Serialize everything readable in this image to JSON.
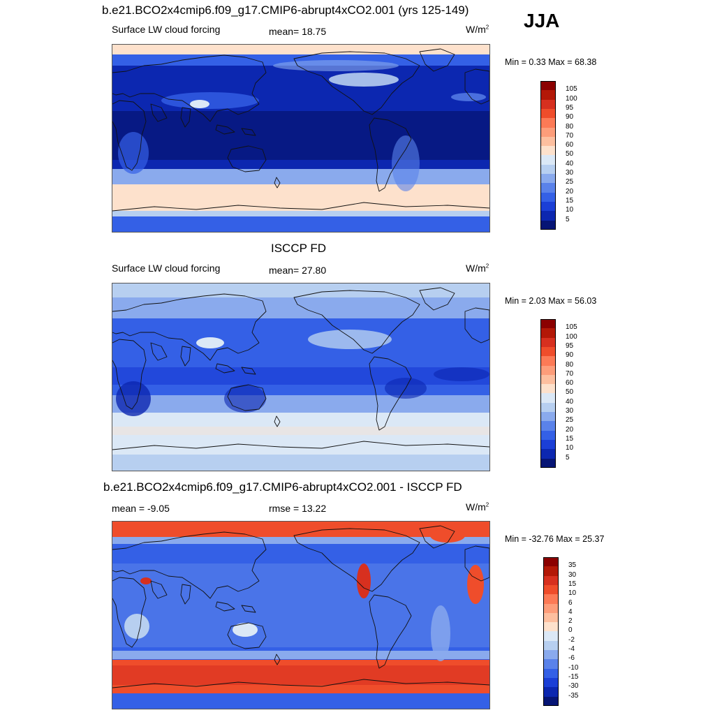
{
  "season": "JJA",
  "panels": [
    {
      "title": "b.e21.BCO2x4cmip6.f09_g17.CMIP6-abrupt4xCO2.001 (yrs 125-149)",
      "left_label": "Surface LW cloud forcing",
      "center_label": "mean=  18.75",
      "units_base": "W/m",
      "units_exp": "2",
      "minmax": "Min =   0.33 Max =  68.38",
      "colorbar": {
        "labels": [
          "105",
          "100",
          "95",
          "90",
          "80",
          "70",
          "60",
          "50",
          "40",
          "30",
          "25",
          "20",
          "15",
          "10",
          "5"
        ],
        "colors": [
          "#8b0000",
          "#b31807",
          "#d7301f",
          "#ef4d2b",
          "#fc7a56",
          "#fd9d7a",
          "#fdbf9f",
          "#fde1cc",
          "#dbe8f6",
          "#b7cff0",
          "#8aaaed",
          "#5a82ea",
          "#3460e6",
          "#1b3fd6",
          "#0c27b0",
          "#061575"
        ]
      },
      "field": "lwcf_model"
    },
    {
      "title": "ISCCP FD",
      "left_label": "Surface LW cloud forcing",
      "center_label": "mean=  27.80",
      "units_base": "W/m",
      "units_exp": "2",
      "minmax": "Min =   2.03 Max =  56.03",
      "colorbar": {
        "labels": [
          "105",
          "100",
          "95",
          "90",
          "80",
          "70",
          "60",
          "50",
          "40",
          "30",
          "25",
          "20",
          "15",
          "10",
          "5"
        ],
        "colors": [
          "#8b0000",
          "#b31807",
          "#d7301f",
          "#ef4d2b",
          "#fc7a56",
          "#fd9d7a",
          "#fdbf9f",
          "#fde1cc",
          "#dbe8f6",
          "#b7cff0",
          "#8aaaed",
          "#5a82ea",
          "#3460e6",
          "#1b3fd6",
          "#0c27b0",
          "#061575"
        ]
      },
      "field": "lwcf_obs"
    },
    {
      "title": "b.e21.BCO2x4cmip6.f09_g17.CMIP6-abrupt4xCO2.001 - ISCCP FD",
      "left_label": "mean =  -9.05",
      "center_label": "rmse =  13.22",
      "units_base": "W/m",
      "units_exp": "2",
      "minmax": "Min = -32.76 Max =  25.37",
      "colorbar": {
        "labels": [
          "35",
          "30",
          "15",
          "10",
          "6",
          "4",
          "2",
          "0",
          "-2",
          "-4",
          "-6",
          "-10",
          "-15",
          "-30",
          "-35"
        ],
        "colors": [
          "#8b0000",
          "#b31807",
          "#d7301f",
          "#ef4d2b",
          "#fc7a56",
          "#fd9d7a",
          "#fdbf9f",
          "#fde1cc",
          "#dbe8f6",
          "#b7cff0",
          "#8aaaed",
          "#5a82ea",
          "#3460e6",
          "#1b3fd6",
          "#0c27b0",
          "#061575"
        ]
      },
      "field": "lwcf_diff"
    }
  ]
}
